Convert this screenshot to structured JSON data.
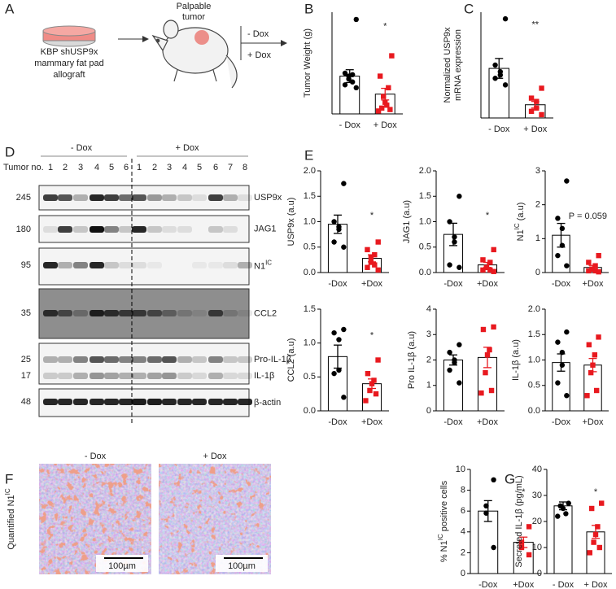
{
  "panel_labels": [
    "A",
    "B",
    "C",
    "D",
    "E",
    "F",
    "G"
  ],
  "schematic": {
    "dish_lines": [
      "KBP shUSP9x",
      "mammary fat pad",
      "allograft"
    ],
    "tumor_lines": [
      "Palpable",
      "tumor"
    ],
    "treatments": [
      "- Dox",
      "+ Dox"
    ]
  },
  "blot": {
    "tumor_label": "Tumor no.",
    "groups": [
      "- Dox",
      "+ Dox"
    ],
    "lanes": [
      [
        "1",
        "2",
        "3",
        "4",
        "5",
        "6"
      ],
      [
        "1",
        "2",
        "3",
        "4",
        "5",
        "6",
        "7",
        "8"
      ]
    ],
    "rows": [
      {
        "mw": [
          "245"
        ],
        "labels": [
          "USP9x"
        ]
      },
      {
        "mw": [
          "180"
        ],
        "labels": [
          "JAG1"
        ]
      },
      {
        "mw": [
          "95"
        ],
        "label_parts": [
          {
            "text": "N1"
          },
          {
            "text": "IC",
            "sup": true
          }
        ]
      },
      {
        "mw": [
          "35"
        ],
        "labels": [
          "CCL2"
        ]
      },
      {
        "mw": [
          "25",
          "17"
        ],
        "labels": [
          "Pro-IL-1β",
          "IL-1β"
        ]
      },
      {
        "mw": [
          "48"
        ],
        "labels": [
          "β-actin"
        ]
      }
    ]
  },
  "micrograph": {
    "ylabel_parts": [
      {
        "text": "Quantified N1"
      },
      {
        "text": "IC",
        "sup": true
      }
    ],
    "panels": [
      "- Dox",
      "+ Dox"
    ],
    "scale_bar": "100µm"
  },
  "chart_data": [
    {
      "type": "bar",
      "ylabel": "Tumor Weight (g)",
      "categories": [
        "- Dox",
        "+ Dox"
      ],
      "values": [
        1.3,
        0.68
      ],
      "errors": [
        0.22,
        0.2
      ],
      "points": [
        [
          3.25,
          1.4,
          1.35,
          1.3,
          1.2,
          1.1,
          1.0,
          0.9
        ],
        [
          2.0,
          1.3,
          0.9,
          0.6,
          0.4,
          0.3,
          0.2,
          0.15,
          0.1
        ]
      ],
      "colors": [
        "#000000",
        "#e8191f"
      ],
      "ylim": [
        0,
        3.5
      ],
      "annotation": "*"
    },
    {
      "type": "bar",
      "ylabel": [
        "Normalized USP9x",
        "mRNA expression"
      ],
      "categories": [
        "- Dox",
        "+ Dox"
      ],
      "values": [
        1.5,
        0.4
      ],
      "errors": [
        0.3,
        0.1
      ],
      "points": [
        [
          3.0,
          1.6,
          1.4,
          1.3,
          1.2,
          1.0
        ],
        [
          0.9,
          0.6,
          0.5,
          0.3,
          0.2,
          0.1
        ]
      ],
      "colors": [
        "#000000",
        "#e8191f"
      ],
      "ylim": [
        0,
        3.2
      ],
      "annotation": "**"
    },
    {
      "type": "bar",
      "ylabel": "USP9x (a.u)",
      "categories": [
        "-Dox",
        "+Dox"
      ],
      "values": [
        0.95,
        0.28
      ],
      "errors": [
        0.18,
        0.07
      ],
      "points": [
        [
          1.75,
          1.0,
          0.9,
          0.85,
          0.6,
          0.5
        ],
        [
          0.6,
          0.45,
          0.35,
          0.3,
          0.2,
          0.15,
          0.1,
          0.05
        ]
      ],
      "colors": [
        "#000000",
        "#e8191f"
      ],
      "ylim": [
        0,
        2
      ],
      "yticks": [
        {
          "value": 0,
          "label": "0.0"
        },
        {
          "value": 0.5,
          "label": "0.5"
        },
        {
          "value": 1,
          "label": "1.0"
        },
        {
          "value": 1.5,
          "label": "1.5"
        },
        {
          "value": 2,
          "label": "2.0"
        }
      ],
      "annotation": "*"
    },
    {
      "type": "bar",
      "ylabel": "JAG1 (a.u)",
      "categories": [
        "-Dox",
        "+Dox"
      ],
      "values": [
        0.75,
        0.15
      ],
      "errors": [
        0.22,
        0.05
      ],
      "points": [
        [
          1.5,
          1.0,
          0.7,
          0.6,
          0.15,
          0.1
        ],
        [
          0.45,
          0.25,
          0.2,
          0.1,
          0.1,
          0.05,
          0.05,
          0.02
        ]
      ],
      "colors": [
        "#000000",
        "#e8191f"
      ],
      "ylim": [
        0,
        2
      ],
      "yticks": [
        {
          "value": 0,
          "label": "0.0"
        },
        {
          "value": 0.5,
          "label": "0.5"
        },
        {
          "value": 1,
          "label": "1.0"
        },
        {
          "value": 1.5,
          "label": "1.5"
        },
        {
          "value": 2,
          "label": "2.0"
        }
      ],
      "annotation": "*"
    },
    {
      "type": "bar",
      "ylabel_parts": [
        {
          "text": "N1"
        },
        {
          "text": "IC",
          "sup": true
        },
        {
          "text": " (a.u)"
        }
      ],
      "categories": [
        "-Dox",
        "+Dox"
      ],
      "values": [
        1.1,
        0.15
      ],
      "errors": [
        0.35,
        0.06
      ],
      "points": [
        [
          2.7,
          1.6,
          1.3,
          0.8,
          0.5,
          0.2
        ],
        [
          0.5,
          0.3,
          0.2,
          0.1,
          0.1,
          0.05,
          0.05,
          0.02
        ]
      ],
      "colors": [
        "#000000",
        "#e8191f"
      ],
      "ylim": [
        0,
        3
      ],
      "yticks": [
        0,
        1,
        2,
        3
      ],
      "annotation": "P = 0.059"
    },
    {
      "type": "bar",
      "ylabel": "CCL2 (a.u)",
      "categories": [
        "-Dox",
        "+Dox"
      ],
      "values": [
        0.8,
        0.4
      ],
      "errors": [
        0.17,
        0.07
      ],
      "points": [
        [
          1.2,
          1.15,
          1.05,
          0.6,
          0.55,
          0.2
        ],
        [
          0.75,
          0.55,
          0.45,
          0.4,
          0.3,
          0.25,
          0.15
        ]
      ],
      "colors": [
        "#000000",
        "#e8191f"
      ],
      "ylim": [
        0,
        1.5
      ],
      "yticks": [
        {
          "value": 0,
          "label": "0.0"
        },
        {
          "value": 0.5,
          "label": "0.5"
        },
        {
          "value": 1,
          "label": "1.0"
        },
        {
          "value": 1.5,
          "label": "1.5"
        }
      ],
      "annotation": "*"
    },
    {
      "type": "bar",
      "ylabel": "Pro IL-1β (a.u)",
      "categories": [
        "-Dox",
        "+Dox"
      ],
      "values": [
        2.0,
        2.1
      ],
      "errors": [
        0.2,
        0.4
      ],
      "points": [
        [
          2.6,
          2.3,
          2.0,
          1.9,
          1.6,
          1.1
        ],
        [
          3.3,
          3.2,
          2.4,
          2.2,
          1.5,
          0.8,
          0.7
        ]
      ],
      "colors": [
        "#000000",
        "#e8191f"
      ],
      "ylim": [
        0,
        4
      ],
      "yticks": [
        0,
        1,
        2,
        3,
        4
      ]
    },
    {
      "type": "bar",
      "ylabel": "IL-1β (a.u)",
      "categories": [
        "-Dox",
        "+Dox"
      ],
      "values": [
        0.95,
        0.9
      ],
      "errors": [
        0.17,
        0.13
      ],
      "points": [
        [
          1.55,
          1.35,
          1.15,
          0.9,
          0.55,
          0.3
        ],
        [
          1.45,
          1.3,
          1.1,
          0.9,
          0.75,
          0.4,
          0.3
        ]
      ],
      "colors": [
        "#000000",
        "#e8191f"
      ],
      "ylim": [
        0,
        2
      ],
      "yticks": [
        {
          "value": 0,
          "label": "0.0"
        },
        {
          "value": 0.5,
          "label": "0.5"
        },
        {
          "value": 1,
          "label": "1.0"
        },
        {
          "value": 1.5,
          "label": "1.5"
        },
        {
          "value": 2,
          "label": "2.0"
        }
      ]
    },
    {
      "type": "bar",
      "ylabel_parts": [
        {
          "text": "% N1"
        },
        {
          "text": "IC",
          "sup": true
        },
        {
          "text": " positive cells"
        }
      ],
      "categories": [
        "-Dox",
        "+Dox"
      ],
      "values": [
        6,
        3
      ],
      "errors": [
        1.0,
        0.5
      ],
      "points": [
        [
          9.0,
          6.5,
          5.8,
          2.5
        ],
        [
          4.5,
          3.0,
          2.5,
          1.8
        ]
      ],
      "colors": [
        "#000000",
        "#e8191f"
      ],
      "ylim": [
        0,
        10
      ],
      "yticks": [
        0,
        2,
        4,
        6,
        8,
        10
      ],
      "annotation": "*"
    },
    {
      "type": "bar",
      "ylabel": "Secreted IL-1β (pg/mL)",
      "categories": [
        "- Dox",
        "+ Dox"
      ],
      "values": [
        26,
        16
      ],
      "errors": [
        1.5,
        2.5
      ],
      "points": [
        [
          27,
          26,
          25,
          23,
          22
        ],
        [
          27,
          25,
          18,
          15,
          12,
          10,
          8
        ]
      ],
      "colors": [
        "#000000",
        "#e8191f"
      ],
      "ylim": [
        0,
        40
      ],
      "yticks": [
        0,
        10,
        20,
        30,
        40
      ],
      "annotation": "*"
    }
  ]
}
